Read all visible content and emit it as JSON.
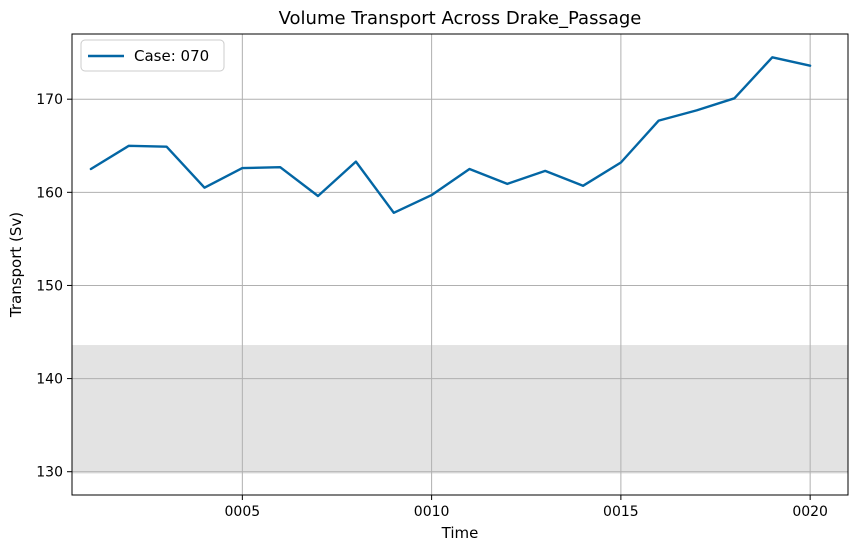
{
  "chart_data": {
    "type": "line",
    "title": "Volume Transport Across Drake_Passage",
    "xlabel": "Time",
    "ylabel": "Transport (Sv)",
    "x": [
      1,
      2,
      3,
      4,
      5,
      6,
      7,
      8,
      9,
      10,
      11,
      12,
      13,
      14,
      15,
      16,
      17,
      18,
      19,
      20
    ],
    "xlim": [
      0.5,
      21.0
    ],
    "ylim": [
      127.5,
      177.0
    ],
    "x_ticks": [
      5,
      10,
      15,
      20
    ],
    "x_tick_labels": [
      "0005",
      "0010",
      "0015",
      "0020"
    ],
    "y_ticks": [
      130,
      140,
      150,
      160,
      170
    ],
    "y_tick_labels": [
      "130",
      "140",
      "150",
      "160",
      "170"
    ],
    "grid": true,
    "legend_position": "top-left",
    "shaded_band": {
      "y_from": 129.8,
      "y_to": 143.6,
      "color": "#e3e3e3"
    },
    "series": [
      {
        "name": "Case: 070",
        "color": "#0366a4",
        "values": [
          162.5,
          165.0,
          164.9,
          160.5,
          162.6,
          162.7,
          159.6,
          163.3,
          157.8,
          159.7,
          162.5,
          160.9,
          162.3,
          160.7,
          163.2,
          167.7,
          168.8,
          170.1,
          174.5,
          173.6
        ]
      }
    ]
  }
}
